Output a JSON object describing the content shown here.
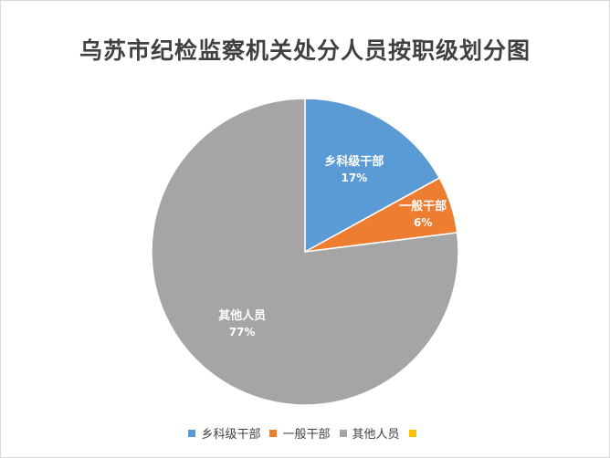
{
  "chart_data": {
    "type": "pie",
    "title": "乌苏市纪检监察机关处分人员按职级划分图",
    "categories": [
      "乡科级干部",
      "一般干部",
      "其他人员",
      ""
    ],
    "values": [
      17,
      6,
      77,
      0
    ],
    "value_labels": [
      "17%",
      "6%",
      "77%",
      ""
    ],
    "colors": [
      "#5b9bd5",
      "#ed7d31",
      "#a5a5a5",
      "#ffc000"
    ],
    "legend_position": "bottom",
    "data_labels": "inside"
  }
}
